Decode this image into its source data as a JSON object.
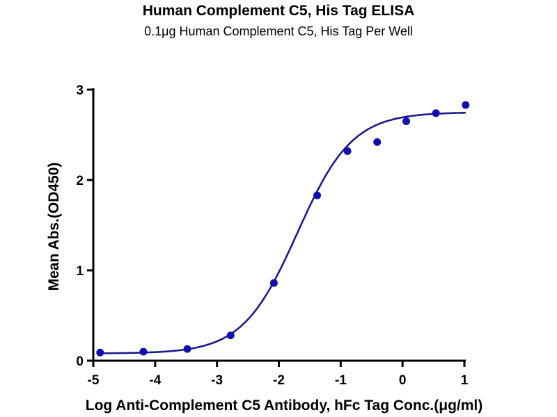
{
  "chart_data": {
    "type": "scatter",
    "title": "Human Complement C5, His Tag ELISA",
    "subtitle": "0.1μg Human Complement C5, His Tag Per Well",
    "xlabel": "Log Anti-Complement C5 Antibody, hFc Tag Conc.(μg/ml)",
    "ylabel": "Mean Abs.(OD450)",
    "xlim": [
      -5,
      1
    ],
    "ylim": [
      0,
      3
    ],
    "xticks": [
      "-5",
      "-4",
      "-3",
      "-2",
      "-1",
      "0",
      "1"
    ],
    "yticks": [
      "0",
      "1",
      "2",
      "3"
    ],
    "grid": false,
    "series": [
      {
        "name": "Mean Abs.",
        "color": "#1010b0",
        "x": [
          -4.89,
          -4.19,
          -3.48,
          -2.78,
          -2.08,
          -1.38,
          -0.89,
          -0.41,
          0.06,
          0.54,
          1.02
        ],
        "y": [
          0.09,
          0.1,
          0.13,
          0.28,
          0.86,
          1.83,
          2.32,
          2.42,
          2.65,
          2.74,
          2.83
        ]
      }
    ],
    "fit": {
      "type": "4PL",
      "color": "#1a1a8c",
      "bottom": 0.08,
      "top": 2.75,
      "logEC50": -1.7,
      "hill": 0.98
    }
  }
}
